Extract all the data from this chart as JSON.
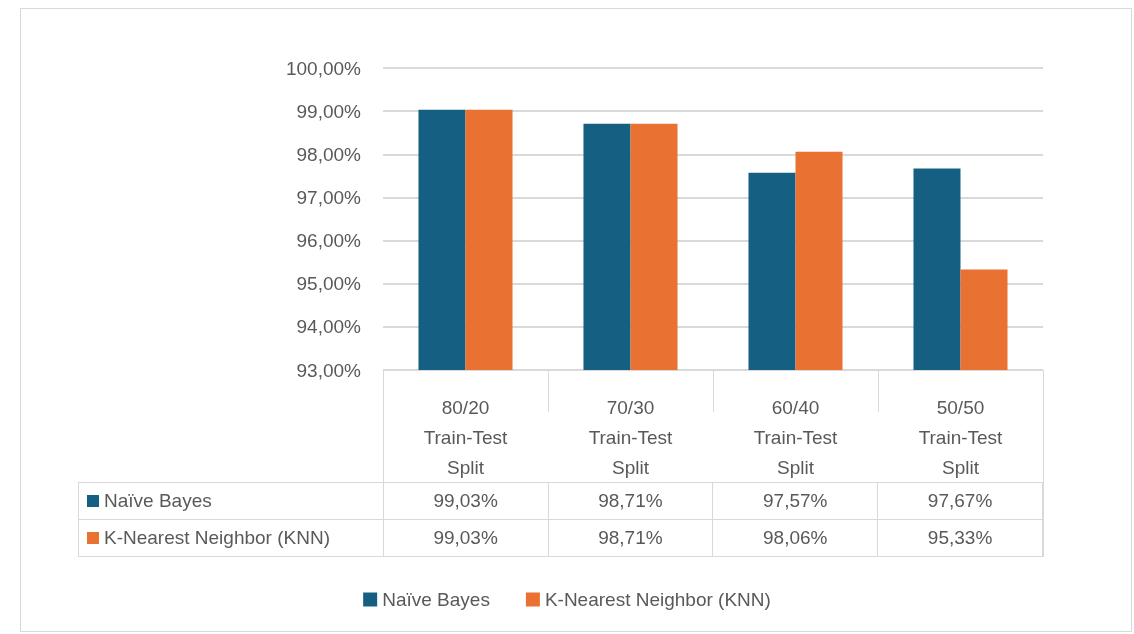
{
  "chart_data": {
    "type": "bar",
    "categories": [
      "80/20 Train-Test Split",
      "70/30 Train-Test Split",
      "60/40 Train-Test Split",
      "50/50 Train-Test Split"
    ],
    "series": [
      {
        "name": "Naïve Bayes",
        "color": "#156082",
        "values": [
          99.03,
          98.71,
          97.57,
          97.67
        ],
        "value_labels": [
          "99,03%",
          "98,71%",
          "97,57%",
          "97,67%"
        ]
      },
      {
        "name": "K-Nearest Neighbor (KNN)",
        "color": "#e97132",
        "values": [
          99.03,
          98.71,
          98.06,
          95.33
        ],
        "value_labels": [
          "99,03%",
          "98,71%",
          "98,06%",
          "95,33%"
        ]
      }
    ],
    "ylim": [
      93,
      100
    ],
    "yticks": [
      {
        "value": 93,
        "label": "93,00%"
      },
      {
        "value": 94,
        "label": "94,00%"
      },
      {
        "value": 95,
        "label": "95,00%"
      },
      {
        "value": 96,
        "label": "96,00%"
      },
      {
        "value": 97,
        "label": "97,00%"
      },
      {
        "value": 98,
        "label": "98,00%"
      },
      {
        "value": 99,
        "label": "99,00%"
      },
      {
        "value": 100,
        "label": "100,00%"
      }
    ],
    "grid": "y",
    "legend": "bottom"
  }
}
